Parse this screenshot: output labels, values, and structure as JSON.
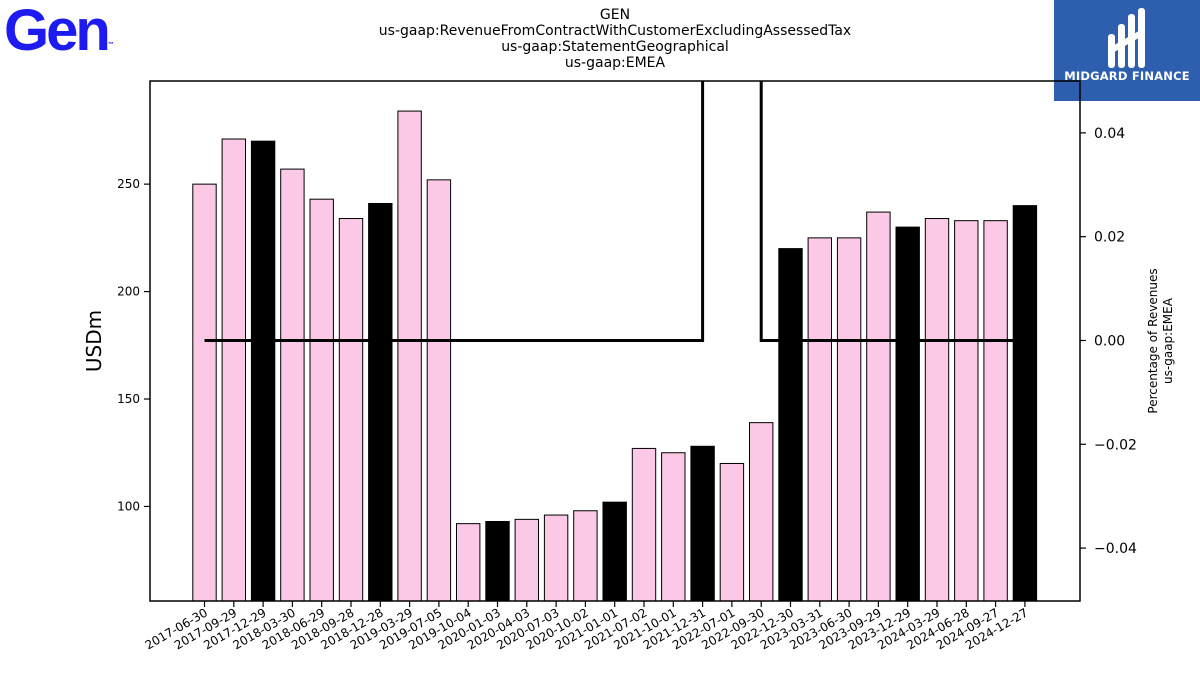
{
  "logos": {
    "left_text": "Gen",
    "left_tm": "™",
    "right_text": "MIDGARD FINANCE",
    "colors": {
      "left": "#1d1bf2",
      "right_bg": "#2d5fae"
    }
  },
  "titles": [
    "GEN",
    "us-gaap:RevenueFromContractWithCustomerExcludingAssessedTax",
    "us-gaap:StatementGeographical",
    "us-gaap:EMEA"
  ],
  "chart_data": {
    "type": "bar",
    "ylabel": "USDm",
    "y2label_lines": [
      "Percentage of Revenues",
      "us-gaap:EMEA"
    ],
    "ylim": [
      56,
      298
    ],
    "y2lim": [
      -0.0502,
      0.05
    ],
    "yticks": [
      100,
      150,
      200,
      250
    ],
    "y2ticks": [
      0.04,
      0.02,
      0.0,
      -0.02,
      -0.04
    ],
    "y2tick_labels": [
      "0.04",
      "0.02",
      "0.00",
      "−0.02",
      "−0.04"
    ],
    "colors": {
      "bar_normal": "#fbc8e5",
      "bar_highlight": "#000000",
      "edge": "#000000",
      "line": "#000000"
    },
    "categories": [
      "2017-06-30",
      "2017-09-29",
      "2017-12-29",
      "2018-03-30",
      "2018-06-29",
      "2018-09-28",
      "2018-12-28",
      "2019-03-29",
      "2019-07-05",
      "2019-10-04",
      "2020-01-03",
      "2020-04-03",
      "2020-07-03",
      "2020-10-02",
      "2021-01-01",
      "2021-07-02",
      "2021-10-01",
      "2021-12-31",
      "2022-07-01",
      "2022-09-30",
      "2022-12-30",
      "2023-03-31",
      "2023-06-30",
      "2023-09-29",
      "2023-12-29",
      "2024-03-29",
      "2024-06-28",
      "2024-09-27",
      "2024-12-27"
    ],
    "values": [
      250,
      271,
      270,
      257,
      243,
      234,
      241,
      284,
      252,
      92,
      93,
      94,
      96,
      98,
      102,
      127,
      125,
      128,
      120,
      139,
      220,
      225,
      225,
      237,
      230,
      234,
      233,
      233,
      240
    ],
    "highlight": [
      false,
      false,
      true,
      false,
      false,
      false,
      true,
      false,
      false,
      false,
      true,
      false,
      false,
      false,
      true,
      false,
      false,
      true,
      false,
      false,
      true,
      false,
      false,
      false,
      true,
      false,
      false,
      false,
      true
    ],
    "pct_line": {
      "segments": [
        {
          "from_index": 0,
          "to_index": 17,
          "value": 0.0
        },
        {
          "from_index": 19,
          "to_index": 28,
          "value": 0.0
        }
      ],
      "gap_between": [
        17,
        19
      ],
      "gap_rises_to": "top"
    }
  }
}
